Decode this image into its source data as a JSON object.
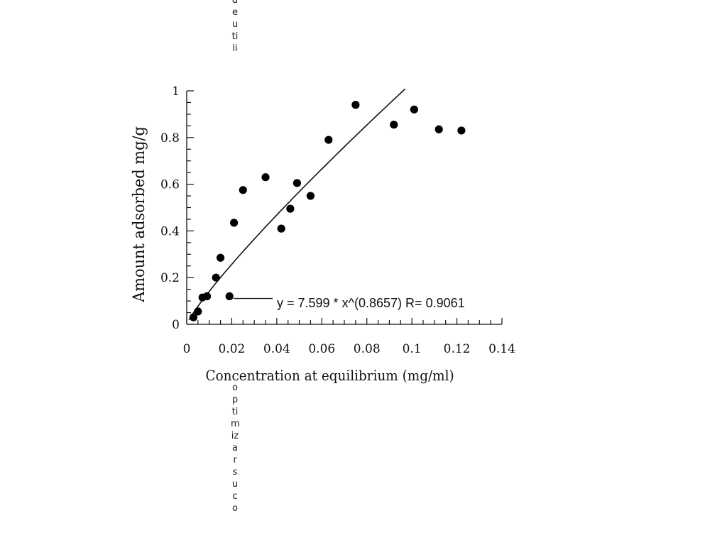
{
  "chart_data": {
    "type": "scatter",
    "xlabel": "Concentration at equilibrium (mg/ml)",
    "ylabel": "Amount adsorbed mg/g",
    "xlim": [
      0,
      0.14
    ],
    "ylim": [
      0,
      1
    ],
    "x_ticks": [
      "0",
      "0.02",
      "0.04",
      "0.06",
      "0.08",
      "0.1",
      "0.12",
      "0.14"
    ],
    "y_ticks": [
      "0",
      "0.2",
      "0.4",
      "0.6",
      "0.8",
      "1"
    ],
    "annotation": "y = 7.599 * x^(0.8657)   R= 0.9061",
    "series": [
      {
        "points": [
          [
            0.003,
            0.03
          ],
          [
            0.005,
            0.055
          ],
          [
            0.007,
            0.115
          ],
          [
            0.009,
            0.12
          ],
          [
            0.013,
            0.2
          ],
          [
            0.015,
            0.285
          ],
          [
            0.019,
            0.12
          ],
          [
            0.021,
            0.435
          ],
          [
            0.025,
            0.575
          ],
          [
            0.035,
            0.63
          ],
          [
            0.042,
            0.41
          ],
          [
            0.046,
            0.495
          ],
          [
            0.049,
            0.605
          ],
          [
            0.055,
            0.55
          ],
          [
            0.063,
            0.79
          ],
          [
            0.075,
            0.94
          ],
          [
            0.092,
            0.855
          ],
          [
            0.101,
            0.92
          ],
          [
            0.112,
            0.835
          ],
          [
            0.122,
            0.83
          ]
        ]
      }
    ],
    "fit": {
      "coefficient": 7.599,
      "exponent": 0.8657,
      "x_range": [
        0.001,
        0.097
      ]
    }
  },
  "vertical_text": {
    "top": "deutili",
    "bottom": "optimizarsuco"
  }
}
